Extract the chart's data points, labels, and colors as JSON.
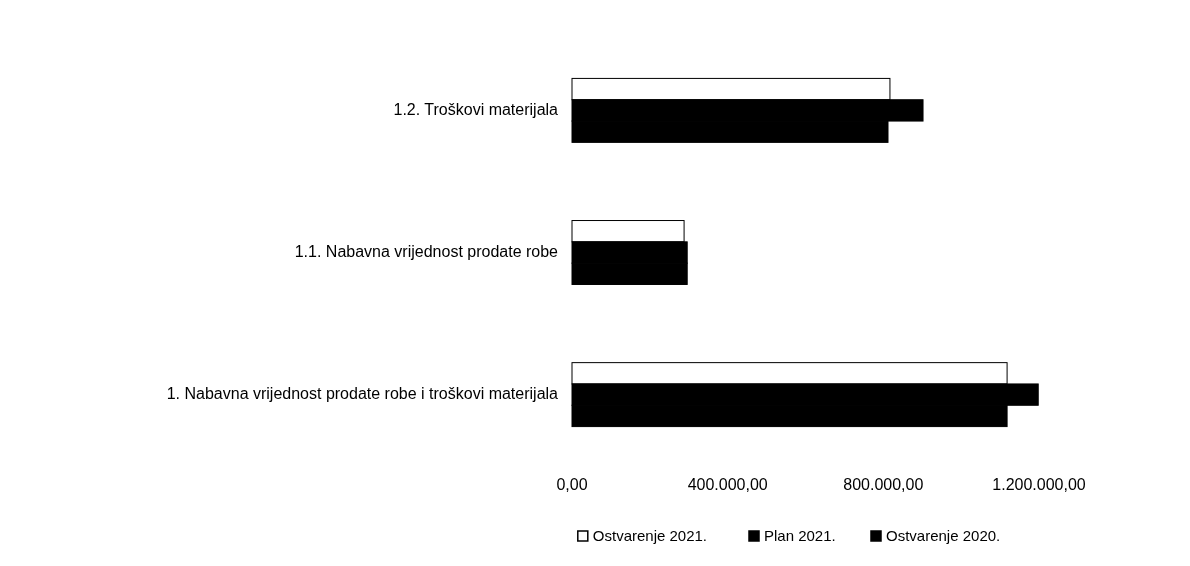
{
  "chart_data": {
    "type": "bar",
    "orientation": "horizontal",
    "categories": [
      "1.2. Troškovi materijala",
      "1.1. Nabavna vrijednost prodate robe",
      "1. Nabavna vrijednost prodate robe i troškovi materijala"
    ],
    "series": [
      {
        "name": "Ostvarenje 2021.",
        "color": "#ffffff",
        "values": [
          817000,
          288000,
          1118000
        ]
      },
      {
        "name": "Plan 2021.",
        "color": "#000000",
        "values": [
          902000,
          296000,
          1198000
        ]
      },
      {
        "name": "Ostvarenje 2020.",
        "color": "#000000",
        "values": [
          812000,
          296000,
          1118000
        ]
      }
    ],
    "xlim": [
      0,
      1200000
    ],
    "xticks": [
      {
        "value": 0,
        "label": "0,00"
      },
      {
        "value": 400000,
        "label": "400.000,00"
      },
      {
        "value": 800000,
        "label": "800.000,00"
      },
      {
        "value": 1200000,
        "label": "1.200.000,00"
      }
    ],
    "grid": false,
    "legend": "bottom"
  }
}
